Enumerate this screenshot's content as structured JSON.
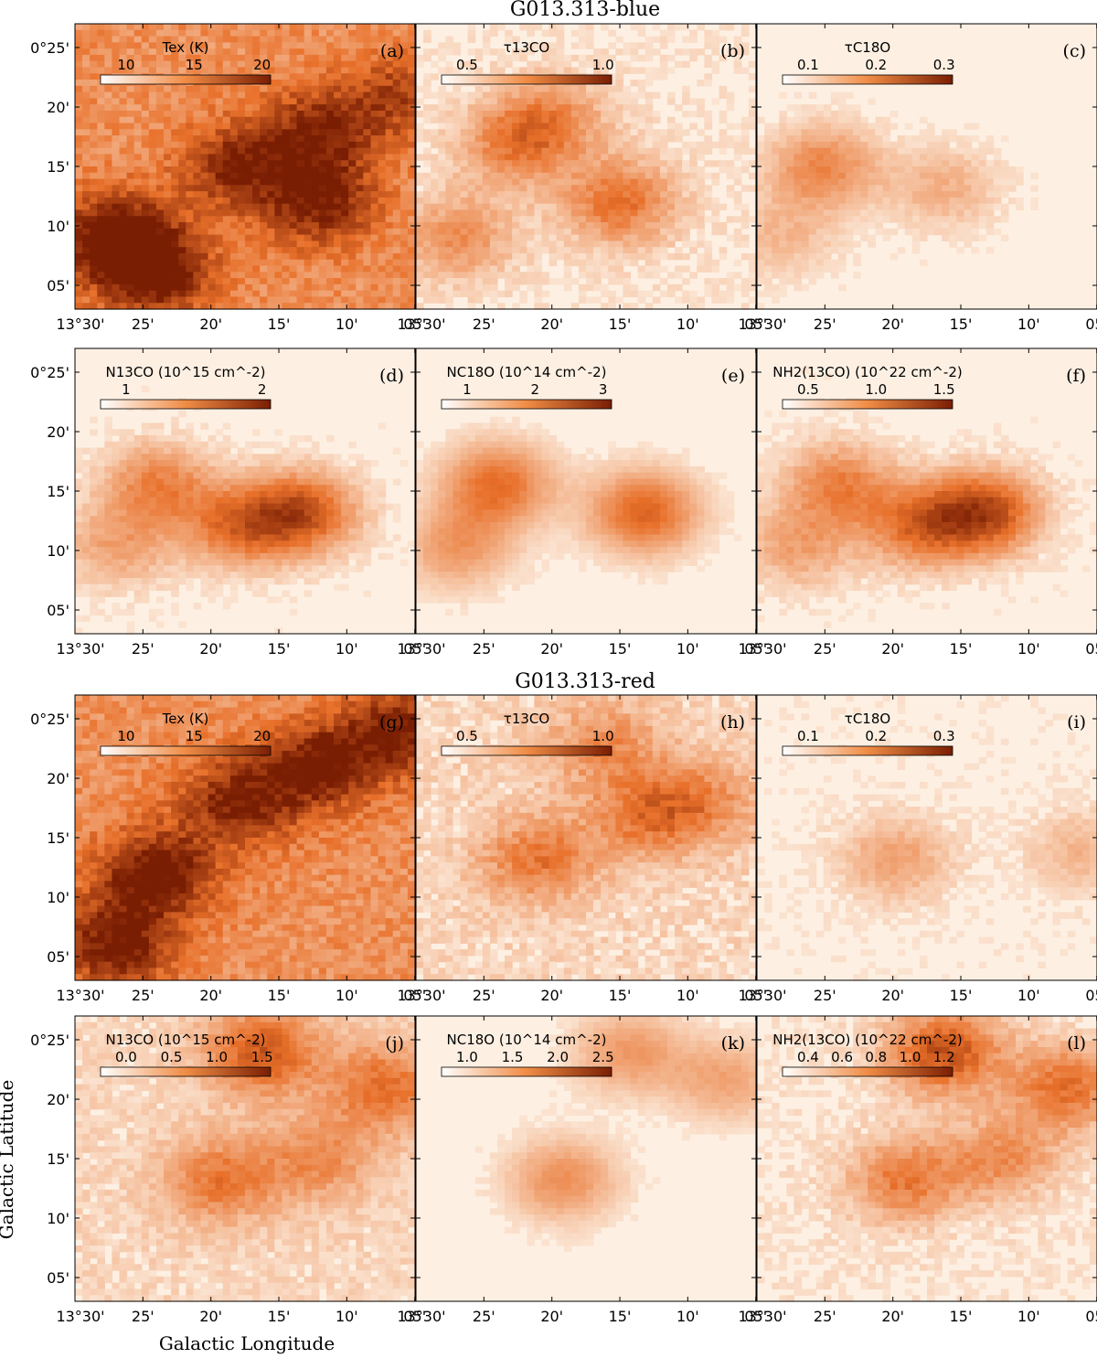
{
  "figure": {
    "group_titles": [
      "G013.313-blue",
      "G013.313-red"
    ],
    "xlabel": "Galactic Longitude",
    "ylabel": "Galactic Latitude",
    "x_tick_labels": [
      "13°30'",
      "25'",
      "20'",
      "15'",
      "10'",
      "05'"
    ],
    "y_tick_labels": [
      "0°25'",
      "20'",
      "15'",
      "10'",
      "05'"
    ],
    "colormap": {
      "low": "#fdf0e3",
      "mid": "#e8702a",
      "high": "#7a1e03"
    },
    "background_color": "#fdf0e3"
  },
  "chart_data": [
    {
      "type": "heatmap",
      "panel": "(a)",
      "group": "G013.313-blue",
      "quantity": "Tex (K)",
      "colorbar_ticks": [
        "10",
        "15",
        "20"
      ],
      "x_range_arcmin": [
        13.5,
        13.083
      ],
      "y_range_arcmin": [
        0.05,
        0.45
      ],
      "blobs": [
        [
          13.3,
          0.25,
          0.5
        ],
        [
          13.2,
          0.2,
          0.55
        ],
        [
          13.45,
          0.15,
          0.7
        ],
        [
          13.4,
          0.1,
          0.6
        ],
        [
          13.2,
          0.3,
          0.5
        ],
        [
          13.1,
          0.35,
          0.35
        ]
      ],
      "base": 0.45,
      "noise": 0.12
    },
    {
      "type": "heatmap",
      "panel": "(b)",
      "group": "G013.313-blue",
      "quantity": "τ13CO",
      "colorbar_ticks": [
        "0.5",
        "1.0"
      ],
      "blobs": [
        [
          13.25,
          0.2,
          0.55
        ],
        [
          13.38,
          0.28,
          0.45
        ],
        [
          13.45,
          0.15,
          0.4
        ],
        [
          13.33,
          0.32,
          0.35
        ]
      ],
      "base": 0.05,
      "noise": 0.08
    },
    {
      "type": "heatmap",
      "panel": "(c)",
      "group": "G013.313-blue",
      "quantity": "τC18O",
      "colorbar_ticks": [
        "0.1",
        "0.2",
        "0.3"
      ],
      "blobs": [
        [
          13.42,
          0.25,
          0.5
        ],
        [
          13.27,
          0.22,
          0.3
        ],
        [
          13.47,
          0.15,
          0.25
        ]
      ],
      "base": 0.0,
      "noise": 0.05
    },
    {
      "type": "heatmap",
      "panel": "(d)",
      "group": "G013.313-blue",
      "quantity": "N13CO (10^15 cm^-2)",
      "colorbar_ticks": [
        "1",
        "2"
      ],
      "blobs": [
        [
          13.22,
          0.22,
          0.7
        ],
        [
          13.3,
          0.2,
          0.55
        ],
        [
          13.4,
          0.26,
          0.5
        ],
        [
          13.45,
          0.17,
          0.35
        ]
      ],
      "base": 0.0,
      "noise": 0.06
    },
    {
      "type": "heatmap",
      "panel": "(e)",
      "group": "G013.313-blue",
      "quantity": "NC18O (10^14 cm^-2)",
      "colorbar_ticks": [
        "1",
        "2",
        "3"
      ],
      "blobs": [
        [
          13.22,
          0.22,
          0.65
        ],
        [
          13.4,
          0.26,
          0.6
        ],
        [
          13.45,
          0.17,
          0.4
        ]
      ],
      "base": 0.0,
      "noise": 0.03
    },
    {
      "type": "heatmap",
      "panel": "(f)",
      "group": "G013.313-blue",
      "quantity": "NH2(13CO) (10^22 cm^-2)",
      "colorbar_ticks": [
        "0.5",
        "1.0",
        "1.5"
      ],
      "blobs": [
        [
          13.22,
          0.22,
          0.75
        ],
        [
          13.3,
          0.2,
          0.55
        ],
        [
          13.4,
          0.26,
          0.5
        ],
        [
          13.45,
          0.17,
          0.35
        ]
      ],
      "base": 0.0,
      "noise": 0.06
    },
    {
      "type": "heatmap",
      "panel": "(g)",
      "group": "G013.313-red",
      "quantity": "Tex (K)",
      "colorbar_ticks": [
        "10",
        "15",
        "20"
      ],
      "blobs": [
        [
          13.4,
          0.2,
          0.65
        ],
        [
          13.3,
          0.3,
          0.55
        ],
        [
          13.2,
          0.35,
          0.6
        ],
        [
          13.1,
          0.4,
          0.55
        ],
        [
          13.45,
          0.1,
          0.6
        ]
      ],
      "base": 0.45,
      "noise": 0.12
    },
    {
      "type": "heatmap",
      "panel": "(h)",
      "group": "G013.313-red",
      "quantity": "τ13CO",
      "colorbar_ticks": [
        "0.5",
        "1.0"
      ],
      "blobs": [
        [
          13.35,
          0.22,
          0.45
        ],
        [
          13.22,
          0.28,
          0.4
        ],
        [
          13.27,
          0.38,
          0.35
        ],
        [
          13.15,
          0.3,
          0.35
        ]
      ],
      "base": 0.12,
      "noise": 0.1
    },
    {
      "type": "heatmap",
      "panel": "(i)",
      "group": "G013.313-red",
      "quantity": "τC18O",
      "colorbar_ticks": [
        "0.1",
        "0.2",
        "0.3"
      ],
      "blobs": [
        [
          13.33,
          0.22,
          0.35
        ],
        [
          13.1,
          0.23,
          0.25
        ]
      ],
      "base": 0.02,
      "noise": 0.06
    },
    {
      "type": "heatmap",
      "panel": "(j)",
      "group": "G013.313-red",
      "quantity": "N13CO (10^15 cm^-2)",
      "colorbar_ticks": [
        "0.0",
        "0.5",
        "1.0",
        "1.5"
      ],
      "blobs": [
        [
          13.27,
          0.4,
          0.6
        ],
        [
          13.12,
          0.35,
          0.5
        ],
        [
          13.32,
          0.22,
          0.45
        ],
        [
          13.2,
          0.25,
          0.35
        ]
      ],
      "base": 0.12,
      "noise": 0.08
    },
    {
      "type": "heatmap",
      "panel": "(k)",
      "group": "G013.313-red",
      "quantity": "NC18O (10^14 cm^-2)",
      "colorbar_ticks": [
        "1.0",
        "1.5",
        "2.0",
        "2.5"
      ],
      "blobs": [
        [
          13.32,
          0.22,
          0.45
        ],
        [
          13.24,
          0.4,
          0.4
        ],
        [
          13.12,
          0.36,
          0.35
        ]
      ],
      "base": 0.0,
      "noise": 0.03
    },
    {
      "type": "heatmap",
      "panel": "(l)",
      "group": "G013.313-red",
      "quantity": "NH2(13CO) (10^22 cm^-2)",
      "colorbar_ticks": [
        "0.4",
        "0.6",
        "0.8",
        "1.0",
        "1.2"
      ],
      "blobs": [
        [
          13.27,
          0.4,
          0.7
        ],
        [
          13.12,
          0.35,
          0.55
        ],
        [
          13.32,
          0.22,
          0.5
        ],
        [
          13.2,
          0.25,
          0.4
        ]
      ],
      "base": 0.05,
      "noise": 0.08
    }
  ]
}
